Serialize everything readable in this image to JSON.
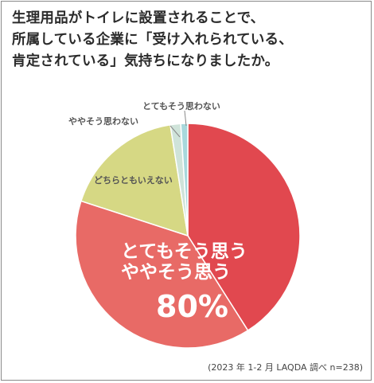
{
  "title_lines": [
    "生理用品がトイレに設置されることで、",
    "所属している企業に「受け入れられている、",
    "肯定されている」気持ちになりましたか。"
  ],
  "chart_data": {
    "type": "pie",
    "slices": [
      {
        "label": "とてもそう思う",
        "value": 41,
        "color": "#e1484f"
      },
      {
        "label": "ややそう思う",
        "value": 39,
        "color": "#e86a66"
      },
      {
        "label": "どちらともいえない",
        "value": 17.5,
        "color": "#d6d884"
      },
      {
        "label": "ややそう思わない",
        "value": 1.5,
        "color": "#cfe3d9"
      },
      {
        "label": "とてもそう思わない",
        "value": 1,
        "color": "#a8d8dc"
      }
    ],
    "combined_label_lines": [
      "とてもそう思う",
      "ややそう思う"
    ],
    "combined_value": "80%"
  },
  "footnote": "(2023 年 1-2 月 LAQDA 調べ n=238)"
}
